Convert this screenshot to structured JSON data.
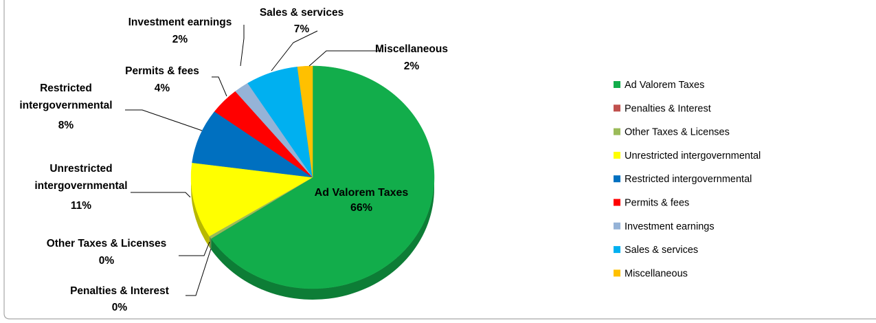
{
  "chart_data": {
    "type": "pie",
    "title": "",
    "legend_position": "right",
    "slices": [
      {
        "label": "Ad Valorem Taxes",
        "value": 66,
        "display": "66%",
        "color": "#12ad4b"
      },
      {
        "label": "Penalties & Interest",
        "value": 0,
        "display": "0%",
        "color": "#c0504d"
      },
      {
        "label": "Other Taxes & Licenses",
        "value": 0.4,
        "display": "0%",
        "color": "#9bbb59"
      },
      {
        "label": "Unrestricted intergovernmental",
        "value": 11,
        "display": "11%",
        "color": "#ffff00"
      },
      {
        "label": "Restricted intergovernmental",
        "value": 8,
        "display": "8%",
        "color": "#0070c0"
      },
      {
        "label": "Permits & fees",
        "value": 4,
        "display": "4%",
        "color": "#ff0000"
      },
      {
        "label": "Investment earnings",
        "value": 2,
        "display": "2%",
        "color": "#95b3d7"
      },
      {
        "label": "Sales & services",
        "value": 7,
        "display": "7%",
        "color": "#00b0f0"
      },
      {
        "label": "Miscellaneous",
        "value": 2,
        "display": "2%",
        "color": "#ffc000"
      }
    ]
  }
}
